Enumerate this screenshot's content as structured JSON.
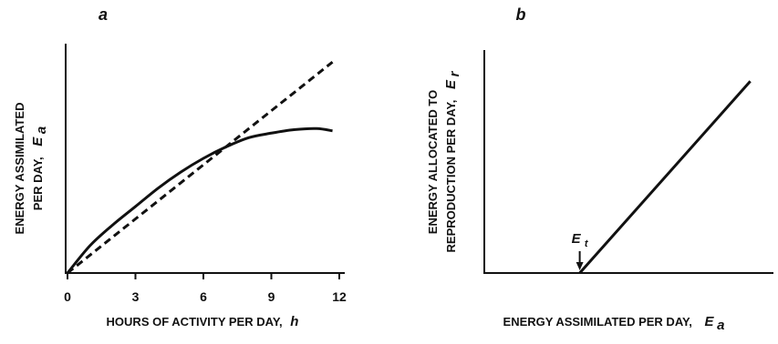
{
  "chart_data": [
    {
      "type": "line",
      "panel_label": "a",
      "xlabel": "HOURS OF ACTIVITY PER DAY,",
      "xlabel_symbol": "h",
      "ylabel_line1": "ENERGY ASSIMILATED",
      "ylabel_line2": "PER DAY,",
      "ylabel_symbol": "E",
      "ylabel_symbol_sub": "a",
      "xlim": [
        0,
        12
      ],
      "ylim": [
        0,
        1
      ],
      "x_ticks": [
        0,
        3,
        6,
        9,
        12
      ],
      "x_tick_labels": [
        "0",
        "3",
        "6",
        "9",
        "12"
      ],
      "grid": false,
      "series": [
        {
          "style": "solid",
          "x": [
            0,
            1,
            2,
            3,
            4,
            5,
            6,
            7,
            8,
            9,
            10,
            11,
            11.7
          ],
          "y": [
            0,
            0.12,
            0.21,
            0.29,
            0.37,
            0.44,
            0.5,
            0.55,
            0.59,
            0.61,
            0.625,
            0.63,
            0.62
          ]
        },
        {
          "style": "dashed",
          "x": [
            0,
            11.7
          ],
          "y": [
            0,
            0.92
          ]
        }
      ]
    },
    {
      "type": "line",
      "panel_label": "b",
      "xlabel": "ENERGY ASSIMILATED PER DAY,",
      "xlabel_symbol": "E",
      "xlabel_symbol_sub": "a",
      "ylabel_line1": "ENERGY ALLOCATED TO",
      "ylabel_line2": "REPRODUCTION PER DAY,",
      "ylabel_symbol": "E",
      "ylabel_symbol_sub": "r",
      "xlim": [
        0,
        1
      ],
      "ylim": [
        0,
        1
      ],
      "grid": false,
      "annotation": {
        "symbol": "E",
        "symbol_sub": "t",
        "x": 0.33
      },
      "series": [
        {
          "style": "solid",
          "x": [
            0.33,
            0.92
          ],
          "y": [
            0,
            0.86
          ]
        }
      ]
    }
  ]
}
